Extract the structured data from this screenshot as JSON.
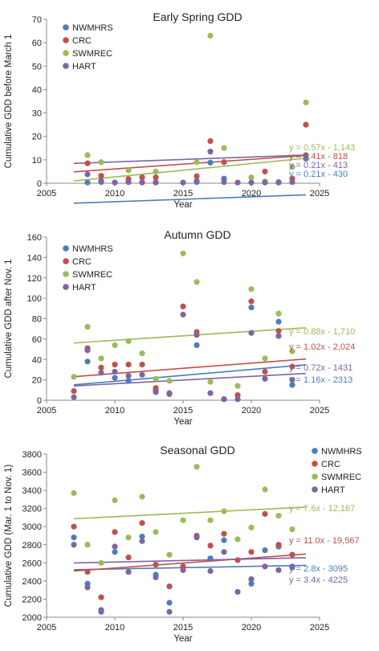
{
  "chart_data": [
    {
      "type": "scatter",
      "title": "Early Spring GDD",
      "xlabel": "Year",
      "ylabel": "Cumulative GDD before March 1",
      "xlim": [
        2005,
        2025
      ],
      "ylim": [
        0,
        70
      ],
      "xticks": [
        2005,
        2010,
        2015,
        2020,
        2025
      ],
      "yticks": [
        0,
        10,
        20,
        30,
        40,
        50,
        60,
        70
      ],
      "grid": false,
      "legend": "top-left",
      "series": [
        {
          "name": "NWMHRS",
          "color": "#4A7EBB",
          "x": [
            2008,
            2009,
            2011,
            2012,
            2013,
            2016,
            2017,
            2018,
            2021,
            2022,
            2024
          ],
          "y": [
            0.3,
            0.5,
            0.5,
            0.5,
            0.5,
            0.5,
            8.8,
            2.0,
            0.5,
            0.5,
            10.5
          ],
          "fit": [
            0.21,
            -430
          ],
          "equation": "y = 0.21x - 430"
        },
        {
          "name": "CRC",
          "color": "#C0504D",
          "x": [
            2008,
            2009,
            2011,
            2012,
            2013,
            2016,
            2017,
            2018,
            2021,
            2023,
            2024
          ],
          "y": [
            8.5,
            3.2,
            1.8,
            2.5,
            2.5,
            3.0,
            18.0,
            9.0,
            5.0,
            2.0,
            25.0
          ],
          "fit": [
            0.41,
            -818
          ],
          "equation": "y = 0.41x - 818"
        },
        {
          "name": "SWMREC",
          "color": "#9BBB59",
          "x": [
            2008,
            2009,
            2011,
            2013,
            2016,
            2017,
            2018,
            2020,
            2021,
            2023,
            2024
          ],
          "y": [
            12.0,
            9.0,
            5.5,
            5.0,
            9.0,
            63.0,
            15.0,
            2.5,
            0.8,
            7.0,
            34.5
          ],
          "fit": [
            0.57,
            -1143
          ],
          "equation": "y = 0.57x - 1,143"
        },
        {
          "name": "HART",
          "color": "#8064A2",
          "x": [
            2008,
            2009,
            2010,
            2011,
            2012,
            2013,
            2015,
            2016,
            2017,
            2018,
            2019,
            2020,
            2021,
            2022,
            2023,
            2024
          ],
          "y": [
            3.8,
            1.0,
            0.3,
            0.5,
            0.3,
            0.3,
            0.3,
            1.0,
            13.5,
            0.5,
            0.3,
            0.3,
            0.3,
            0.3,
            0.5,
            12.0
          ],
          "fit": [
            0.21,
            -413
          ],
          "equation": "y = 0.21x - 413"
        }
      ]
    },
    {
      "type": "scatter",
      "title": "Autumn GDD",
      "xlabel": "Year",
      "ylabel": "Cumulative GDD after Nov. 1",
      "xlim": [
        2005,
        2025
      ],
      "ylim": [
        0,
        160
      ],
      "xticks": [
        2005,
        2010,
        2015,
        2020,
        2025
      ],
      "yticks": [
        0,
        20,
        40,
        60,
        80,
        100,
        120,
        140,
        160
      ],
      "grid": false,
      "legend": "top-left",
      "series": [
        {
          "name": "NWMHRS",
          "color": "#4A7EBB",
          "x": [
            2008,
            2010,
            2011,
            2013,
            2016,
            2020,
            2022,
            2023
          ],
          "y": [
            38,
            22,
            19,
            10,
            54,
            91,
            77,
            15
          ],
          "fit": [
            1.16,
            -2313
          ],
          "equation": "y = 1.16x - 2313"
        },
        {
          "name": "CRC",
          "color": "#C0504D",
          "x": [
            2007,
            2008,
            2009,
            2010,
            2011,
            2012,
            2013,
            2014,
            2015,
            2016,
            2018,
            2019,
            2020,
            2021,
            2022,
            2023
          ],
          "y": [
            9,
            51,
            32,
            35,
            35,
            35,
            12,
            6,
            92,
            67,
            1,
            5,
            97,
            28,
            68,
            33
          ],
          "fit": [
            1.02,
            -2024
          ],
          "equation": "y = 1.02x - 2,024"
        },
        {
          "name": "SWMREC",
          "color": "#9BBB59",
          "x": [
            2007,
            2008,
            2009,
            2010,
            2011,
            2012,
            2013,
            2014,
            2015,
            2016,
            2017,
            2018,
            2019,
            2020,
            2021,
            2022,
            2023
          ],
          "y": [
            23,
            72,
            41,
            54,
            58,
            46,
            21,
            19,
            144,
            116,
            18,
            1,
            14,
            109,
            41,
            85,
            48
          ],
          "fit": [
            0.88,
            -1710
          ],
          "equation": "y = 0.88x - 1,710"
        },
        {
          "name": "HART",
          "color": "#8064A2",
          "x": [
            2007,
            2008,
            2009,
            2010,
            2011,
            2012,
            2013,
            2014,
            2015,
            2016,
            2017,
            2018,
            2019,
            2020,
            2021,
            2022,
            2023
          ],
          "y": [
            3,
            49,
            27,
            28,
            24,
            25,
            8,
            7,
            84,
            64,
            7,
            1,
            1,
            66,
            21,
            63,
            20
          ],
          "fit": [
            0.72,
            -1431
          ],
          "equation": "y = 0.72x - 1431"
        }
      ]
    },
    {
      "type": "scatter",
      "title": "Seasonal GDD",
      "xlabel": "Year",
      "ylabel": "Cumulative GDD (Mar. 1 to Nov. 1)",
      "xlim": [
        2005,
        2025
      ],
      "ylim": [
        2000,
        3800
      ],
      "xticks": [
        2005,
        2010,
        2015,
        2020,
        2025
      ],
      "yticks": [
        2000,
        2200,
        2400,
        2600,
        2800,
        3000,
        3200,
        3400,
        3600,
        3800
      ],
      "grid": false,
      "legend": "top-right",
      "series": [
        {
          "name": "NWMHRS",
          "color": "#4A7EBB",
          "x": [
            2007,
            2008,
            2009,
            2010,
            2012,
            2013,
            2014,
            2016,
            2017,
            2018,
            2020,
            2021,
            2022,
            2023
          ],
          "y": [
            2880,
            2370,
            2060,
            2720,
            2890,
            2470,
            2160,
            2890,
            2650,
            2850,
            2370,
            2740,
            2780,
            2550
          ],
          "fit": [
            2.8,
            -3095
          ],
          "equation": "y = 2.8x - 3095"
        },
        {
          "name": "CRC",
          "color": "#C0504D",
          "x": [
            2007,
            2008,
            2009,
            2010,
            2011,
            2012,
            2013,
            2014,
            2015,
            2016,
            2017,
            2018,
            2019,
            2020,
            2021,
            2022,
            2023
          ],
          "y": [
            3000,
            2500,
            2220,
            2940,
            2660,
            3040,
            2580,
            2340,
            2560,
            2900,
            2790,
            2920,
            2630,
            2720,
            3140,
            2800,
            2690
          ],
          "fit": [
            11.0,
            -19567
          ],
          "equation": "y = 11.0x - 19,567"
        },
        {
          "name": "SWMREC",
          "color": "#9BBB59",
          "x": [
            2007,
            2008,
            2009,
            2010,
            2011,
            2012,
            2013,
            2014,
            2015,
            2016,
            2017,
            2018,
            2019,
            2020,
            2021,
            2022,
            2023
          ],
          "y": [
            3370,
            2800,
            2600,
            3290,
            2880,
            3330,
            2940,
            2690,
            3070,
            3660,
            3070,
            3170,
            2860,
            2990,
            3410,
            3120,
            2970
          ],
          "fit": [
            7.6,
            -12167
          ],
          "equation": "y = 7.6x - 12,167"
        },
        {
          "name": "HART",
          "color": "#8064A2",
          "x": [
            2007,
            2008,
            2009,
            2010,
            2011,
            2012,
            2013,
            2014,
            2015,
            2016,
            2017,
            2018,
            2019,
            2020,
            2021,
            2022,
            2023
          ],
          "y": [
            2800,
            2330,
            2080,
            2780,
            2500,
            2840,
            2440,
            2060,
            2520,
            2880,
            2510,
            2720,
            2280,
            2420,
            2560,
            2520,
            2560
          ],
          "fit": [
            3.4,
            -4225
          ],
          "equation": "y = 3.4x - 4225"
        }
      ]
    }
  ]
}
